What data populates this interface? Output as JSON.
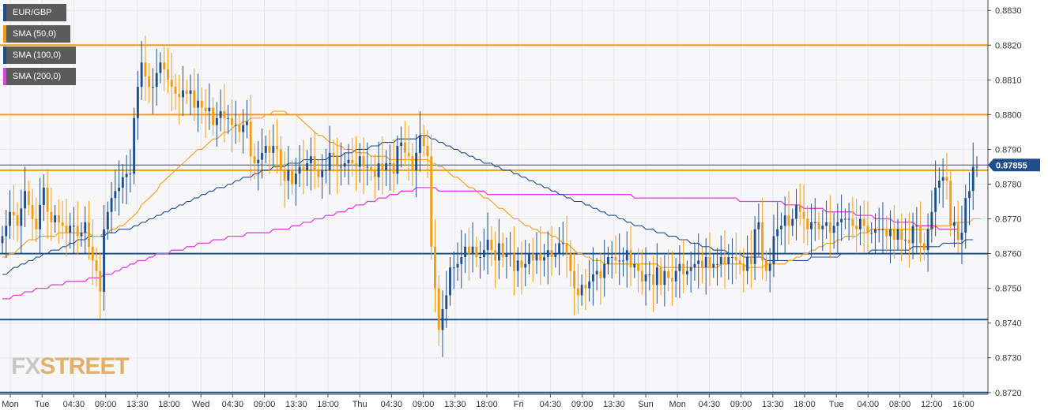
{
  "symbol": "EUR/GBP",
  "legend": [
    {
      "label": "EUR/GBP",
      "color": "#1f4e8c"
    },
    {
      "label": "SMA (50,0)",
      "color": "#f39c12"
    },
    {
      "label": "SMA (100,0)",
      "color": "#1f4e8c"
    },
    {
      "label": "SMA (200,0)",
      "color": "#e040e0"
    }
  ],
  "logo": {
    "fx": "FX",
    "street": "STREET"
  },
  "chart_data": {
    "type": "candlestick",
    "ylim": [
      0.87195,
      0.8833
    ],
    "y_ticks": [
      "0.8720",
      "0.8730",
      "0.8740",
      "0.8750",
      "0.8760",
      "0.8770",
      "0.8780",
      "0.8790",
      "0.8800",
      "0.8810",
      "0.8820",
      "0.8830"
    ],
    "x_tick_labels": [
      "Mon",
      "Tue",
      "04:30",
      "09:00",
      "13:30",
      "18:00",
      "Wed",
      "04:30",
      "09:00",
      "13:30",
      "18:00",
      "Thu",
      "04:30",
      "09:00",
      "13:30",
      "18:00",
      "Fri",
      "04:30",
      "09:00",
      "13:30",
      "Sun",
      "Mon",
      "04:30",
      "09:00",
      "13:30",
      "18:00",
      "Tue",
      "04:00",
      "08:00",
      "12:00",
      "16:00"
    ],
    "current_price": "0.87855",
    "colors": {
      "up": "#1f4e8c",
      "down": "#f39c12",
      "sma50": "#f39c12",
      "sma100": "#1f4e8c",
      "sma200": "#e040e0",
      "grid": "#e6e6e6",
      "plot_bg": "#f7f7f9"
    },
    "horizontal_levels": [
      {
        "value": 0.882,
        "color": "#f39c12"
      },
      {
        "value": 0.88,
        "color": "#f39c12"
      },
      {
        "value": 0.8784,
        "color": "#f39c12"
      },
      {
        "value": 0.87855,
        "color": "#1f4e8c"
      },
      {
        "value": 0.876,
        "color": "#1f4e8c"
      },
      {
        "value": 0.8741,
        "color": "#1f4e8c"
      },
      {
        "value": 0.872,
        "color": "#1f4e8c"
      }
    ],
    "close": [
      0.8765,
      0.8768,
      0.8772,
      0.8771,
      0.8768,
      0.8773,
      0.8778,
      0.8774,
      0.877,
      0.8767,
      0.8774,
      0.8779,
      0.8772,
      0.8769,
      0.8771,
      0.8769,
      0.8768,
      0.8766,
      0.8768,
      0.8768,
      0.8765,
      0.8766,
      0.8769,
      0.8762,
      0.8758,
      0.8755,
      0.8749,
      0.8767,
      0.8772,
      0.8776,
      0.8778,
      0.8779,
      0.8782,
      0.8783,
      0.8783,
      0.8799,
      0.8808,
      0.8815,
      0.8811,
      0.8808,
      0.8808,
      0.8812,
      0.8815,
      0.8813,
      0.881,
      0.8808,
      0.8806,
      0.8805,
      0.8807,
      0.8806,
      0.8807,
      0.8802,
      0.8804,
      0.8802,
      0.8801,
      0.8802,
      0.8797,
      0.8799,
      0.8801,
      0.8799,
      0.8799,
      0.8797,
      0.8797,
      0.8795,
      0.8797,
      0.8798,
      0.8788,
      0.8786,
      0.8787,
      0.8789,
      0.8791,
      0.8789,
      0.8791,
      0.879,
      0.8784,
      0.8781,
      0.8784,
      0.878,
      0.8783,
      0.8785,
      0.8784,
      0.8786,
      0.8788,
      0.8784,
      0.8782,
      0.8784,
      0.8784,
      0.8789,
      0.8788,
      0.8785,
      0.8785,
      0.8786,
      0.8787,
      0.8786,
      0.8785,
      0.8788,
      0.8785,
      0.8785,
      0.8784,
      0.8782,
      0.8786,
      0.8784,
      0.8786,
      0.8786,
      0.8783,
      0.8791,
      0.8792,
      0.8789,
      0.8788,
      0.8784,
      0.8789,
      0.8794,
      0.8791,
      0.8788,
      0.8762,
      0.875,
      0.8738,
      0.8744,
      0.8748,
      0.8756,
      0.8756,
      0.8757,
      0.8759,
      0.8762,
      0.876,
      0.8762,
      0.8759,
      0.8759,
      0.8761,
      0.8764,
      0.8761,
      0.8758,
      0.8763,
      0.8759,
      0.876,
      0.876,
      0.8755,
      0.8758,
      0.8756,
      0.8757,
      0.876,
      0.8758,
      0.876,
      0.8758,
      0.8759,
      0.8761,
      0.8759,
      0.876,
      0.8763,
      0.8763,
      0.876,
      0.8755,
      0.875,
      0.8748,
      0.8751,
      0.875,
      0.8752,
      0.8754,
      0.8755,
      0.8753,
      0.8757,
      0.8759,
      0.8759,
      0.8758,
      0.8758,
      0.8758,
      0.8761,
      0.8756,
      0.8757,
      0.8755,
      0.8752,
      0.8754,
      0.8754,
      0.8751,
      0.8756,
      0.8751,
      0.8755,
      0.8753,
      0.8752,
      0.8755,
      0.8757,
      0.8754,
      0.8755,
      0.8756,
      0.8757,
      0.8758,
      0.8756,
      0.8759,
      0.8756,
      0.8757,
      0.8757,
      0.8759,
      0.8757,
      0.8759,
      0.8759,
      0.8758,
      0.8757,
      0.8755,
      0.8759,
      0.8757,
      0.8767,
      0.8769,
      0.8758,
      0.8755,
      0.8757,
      0.8765,
      0.8767,
      0.8768,
      0.8771,
      0.8768,
      0.877,
      0.8774,
      0.8772,
      0.877,
      0.8767,
      0.8769,
      0.8769,
      0.8767,
      0.8768,
      0.8769,
      0.8766,
      0.8768,
      0.8769,
      0.877,
      0.877,
      0.877,
      0.8768,
      0.8767,
      0.877,
      0.8768,
      0.8766,
      0.8766,
      0.8767,
      0.8767,
      0.8767,
      0.8765,
      0.8767,
      0.8764,
      0.8767,
      0.8764,
      0.8764,
      0.8763,
      0.8768,
      0.8768,
      0.8763,
      0.8761,
      0.8767,
      0.8772,
      0.8779,
      0.8781,
      0.8782,
      0.8781,
      0.8768,
      0.8769,
      0.8764,
      0.8766,
      0.8776,
      0.8778,
      0.8785,
      0.8785
    ],
    "sma50": [
      0.8759,
      0.8759,
      0.876,
      0.876,
      0.8761,
      0.8762,
      0.8763,
      0.8764,
      0.8764,
      0.8764,
      0.8765,
      0.8765,
      0.8765,
      0.8765,
      0.8765,
      0.8766,
      0.8766,
      0.8766,
      0.8766,
      0.8766,
      0.8766,
      0.8766,
      0.8766,
      0.8766,
      0.8765,
      0.8765,
      0.8765,
      0.8766,
      0.8766,
      0.8767,
      0.8767,
      0.8768,
      0.8768,
      0.8769,
      0.877,
      0.8771,
      0.8772,
      0.8774,
      0.8775,
      0.8776,
      0.8777,
      0.8778,
      0.878,
      0.8781,
      0.8782,
      0.8783,
      0.8784,
      0.8785,
      0.8786,
      0.8787,
      0.8788,
      0.8789,
      0.879,
      0.879,
      0.8791,
      0.8792,
      0.8793,
      0.8793,
      0.8794,
      0.8795,
      0.8795,
      0.8796,
      0.8797,
      0.8797,
      0.8798,
      0.8798,
      0.8799,
      0.8799,
      0.8799,
      0.8799,
      0.88,
      0.88,
      0.8801,
      0.8801,
      0.8801,
      0.8801,
      0.88,
      0.88,
      0.88,
      0.8799,
      0.8798,
      0.8797,
      0.8796,
      0.8795,
      0.8794,
      0.8794,
      0.8793,
      0.8792,
      0.8792,
      0.8791,
      0.8791,
      0.879,
      0.879,
      0.879,
      0.8789,
      0.8789,
      0.8789,
      0.8789,
      0.8788,
      0.8788,
      0.8788,
      0.8788,
      0.8788,
      0.8787,
      0.8787,
      0.8787,
      0.8787,
      0.8787,
      0.8787,
      0.8787,
      0.8787,
      0.8787,
      0.8787,
      0.8787,
      0.8786,
      0.8786,
      0.8785,
      0.8785,
      0.8784,
      0.8783,
      0.8782,
      0.8782,
      0.8781,
      0.878,
      0.8779,
      0.8779,
      0.8778,
      0.8777,
      0.8776,
      0.8776,
      0.8775,
      0.8774,
      0.8773,
      0.8773,
      0.8772,
      0.8771,
      0.877,
      0.877,
      0.8769,
      0.8768,
      0.8768,
      0.8767,
      0.8767,
      0.8766,
      0.8766,
      0.8766,
      0.8765,
      0.8765,
      0.8764,
      0.8763,
      0.8763,
      0.8762,
      0.8761,
      0.876,
      0.876,
      0.8759,
      0.8759,
      0.8758,
      0.8758,
      0.8758,
      0.8757,
      0.8757,
      0.8757,
      0.8757,
      0.8757,
      0.8757,
      0.8757,
      0.8757,
      0.8757,
      0.8757,
      0.8757,
      0.8757,
      0.8757,
      0.8757,
      0.8757,
      0.8756,
      0.8756,
      0.8756,
      0.8756,
      0.8756,
      0.8756,
      0.8756,
      0.8756,
      0.8756,
      0.8756,
      0.8756,
      0.8756,
      0.8756,
      0.8756,
      0.8756,
      0.8756,
      0.8757,
      0.8757,
      0.8757,
      0.8757,
      0.8757,
      0.8757,
      0.8757,
      0.8756,
      0.8756,
      0.8756,
      0.8756,
      0.8756,
      0.8757,
      0.8757,
      0.8757,
      0.8757,
      0.8757,
      0.8757,
      0.8758,
      0.8758,
      0.8759,
      0.8759,
      0.876,
      0.876,
      0.8761,
      0.8761,
      0.8762,
      0.8762,
      0.8763,
      0.8763,
      0.8763,
      0.8764,
      0.8764,
      0.8765,
      0.8765,
      0.8765,
      0.8765,
      0.8766,
      0.8766,
      0.8766,
      0.8767,
      0.8767,
      0.8767,
      0.8767,
      0.8767,
      0.8767,
      0.8767,
      0.8767,
      0.8767,
      0.8767,
      0.8767,
      0.8767,
      0.8767,
      0.8767,
      0.8767,
      0.8767,
      0.8767,
      0.8768,
      0.8768,
      0.8768,
      0.8768,
      0.8768,
      0.8769,
      0.8769,
      0.8769,
      0.8769,
      0.8769,
      0.877,
      0.877,
      0.877
    ],
    "sma100": [
      0.8754,
      0.8754,
      0.8755,
      0.8756,
      0.8756,
      0.8757,
      0.8757,
      0.8758,
      0.8758,
      0.8759,
      0.8759,
      0.876,
      0.876,
      0.8761,
      0.8761,
      0.8761,
      0.8762,
      0.8762,
      0.8763,
      0.8763,
      0.8764,
      0.8764,
      0.8764,
      0.8765,
      0.8765,
      0.8765,
      0.8765,
      0.8765,
      0.8766,
      0.8766,
      0.8766,
      0.8767,
      0.8767,
      0.8767,
      0.8767,
      0.8768,
      0.8768,
      0.8769,
      0.8769,
      0.877,
      0.877,
      0.8771,
      0.8771,
      0.8772,
      0.8772,
      0.8773,
      0.8773,
      0.8774,
      0.8774,
      0.8775,
      0.8775,
      0.8776,
      0.8776,
      0.8777,
      0.8777,
      0.8778,
      0.8778,
      0.8779,
      0.8779,
      0.8779,
      0.878,
      0.878,
      0.8781,
      0.8781,
      0.8782,
      0.8782,
      0.8782,
      0.8783,
      0.8783,
      0.8784,
      0.8784,
      0.8784,
      0.8785,
      0.8785,
      0.8785,
      0.8785,
      0.8786,
      0.8786,
      0.8786,
      0.8786,
      0.8787,
      0.8787,
      0.8787,
      0.8787,
      0.8787,
      0.8787,
      0.8787,
      0.8788,
      0.8788,
      0.8788,
      0.8788,
      0.8789,
      0.8789,
      0.8789,
      0.879,
      0.879,
      0.879,
      0.879,
      0.8791,
      0.8791,
      0.8791,
      0.8792,
      0.8792,
      0.8792,
      0.8792,
      0.8793,
      0.8793,
      0.8793,
      0.8793,
      0.8793,
      0.8793,
      0.8794,
      0.8794,
      0.8794,
      0.8793,
      0.8793,
      0.8792,
      0.8792,
      0.8791,
      0.8791,
      0.879,
      0.879,
      0.8789,
      0.8789,
      0.8788,
      0.8788,
      0.8787,
      0.8787,
      0.8786,
      0.8786,
      0.8786,
      0.8785,
      0.8785,
      0.8784,
      0.8784,
      0.8784,
      0.8783,
      0.8783,
      0.8782,
      0.8782,
      0.8781,
      0.8781,
      0.878,
      0.878,
      0.8779,
      0.8779,
      0.8778,
      0.8778,
      0.8777,
      0.8777,
      0.8776,
      0.8776,
      0.8775,
      0.8775,
      0.8775,
      0.8774,
      0.8774,
      0.8773,
      0.8773,
      0.8772,
      0.8772,
      0.8771,
      0.8771,
      0.8771,
      0.877,
      0.877,
      0.8769,
      0.8769,
      0.8768,
      0.8768,
      0.8768,
      0.8767,
      0.8767,
      0.8767,
      0.8766,
      0.8766,
      0.8766,
      0.8765,
      0.8765,
      0.8765,
      0.8764,
      0.8764,
      0.8764,
      0.8763,
      0.8763,
      0.8763,
      0.8762,
      0.8762,
      0.8762,
      0.8761,
      0.8761,
      0.8761,
      0.8761,
      0.876,
      0.876,
      0.876,
      0.876,
      0.8759,
      0.8759,
      0.8759,
      0.8759,
      0.8759,
      0.8759,
      0.8758,
      0.8758,
      0.8758,
      0.8758,
      0.8758,
      0.8758,
      0.8758,
      0.8758,
      0.8758,
      0.8758,
      0.8758,
      0.8758,
      0.8759,
      0.8759,
      0.8759,
      0.8759,
      0.8759,
      0.8759,
      0.8759,
      0.8759,
      0.876,
      0.876,
      0.876,
      0.876,
      0.876,
      0.876,
      0.876,
      0.876,
      0.8761,
      0.8761,
      0.8761,
      0.8761,
      0.8761,
      0.8761,
      0.8761,
      0.8761,
      0.8761,
      0.8761,
      0.8761,
      0.8762,
      0.8762,
      0.8762,
      0.8762,
      0.8762,
      0.8762,
      0.8762,
      0.8762,
      0.8763,
      0.8763,
      0.8763,
      0.8763,
      0.8763,
      0.8763,
      0.8764,
      0.8764,
      0.8764
    ],
    "sma200": [
      0.8747,
      0.8747,
      0.8747,
      0.8748,
      0.8748,
      0.8748,
      0.8749,
      0.8749,
      0.8749,
      0.875,
      0.875,
      0.875,
      0.875,
      0.8751,
      0.8751,
      0.8751,
      0.8751,
      0.8752,
      0.8752,
      0.8752,
      0.8752,
      0.8752,
      0.8752,
      0.8753,
      0.8753,
      0.8753,
      0.8753,
      0.8754,
      0.8754,
      0.8754,
      0.8755,
      0.8755,
      0.8756,
      0.8756,
      0.8757,
      0.8757,
      0.8758,
      0.8758,
      0.8758,
      0.8759,
      0.8759,
      0.876,
      0.876,
      0.876,
      0.876,
      0.8761,
      0.8761,
      0.8761,
      0.8761,
      0.8762,
      0.8762,
      0.8762,
      0.8763,
      0.8763,
      0.8763,
      0.8763,
      0.8764,
      0.8764,
      0.8764,
      0.8764,
      0.8765,
      0.8765,
      0.8765,
      0.8765,
      0.8765,
      0.8766,
      0.8766,
      0.8766,
      0.8766,
      0.8766,
      0.8766,
      0.8766,
      0.8767,
      0.8767,
      0.8767,
      0.8767,
      0.8767,
      0.8768,
      0.8768,
      0.8768,
      0.8769,
      0.8769,
      0.8769,
      0.877,
      0.877,
      0.877,
      0.8771,
      0.8771,
      0.8771,
      0.8772,
      0.8772,
      0.8772,
      0.8773,
      0.8773,
      0.8774,
      0.8774,
      0.8774,
      0.8775,
      0.8775,
      0.8775,
      0.8776,
      0.8776,
      0.8776,
      0.8777,
      0.8777,
      0.8777,
      0.8778,
      0.8778,
      0.8778,
      0.8778,
      0.8779,
      0.8779,
      0.8779,
      0.8779,
      0.8779,
      0.8779,
      0.8778,
      0.8778,
      0.8778,
      0.8778,
      0.8778,
      0.8778,
      0.8778,
      0.8778,
      0.8778,
      0.8778,
      0.8778,
      0.8778,
      0.8778,
      0.8777,
      0.8777,
      0.8777,
      0.8777,
      0.8777,
      0.8777,
      0.8777,
      0.8777,
      0.8777,
      0.8777,
      0.8777,
      0.8777,
      0.8777,
      0.8777,
      0.8777,
      0.8777,
      0.8777,
      0.8777,
      0.8777,
      0.8777,
      0.8777,
      0.8777,
      0.8777,
      0.8777,
      0.8777,
      0.8777,
      0.8777,
      0.8777,
      0.8777,
      0.8777,
      0.8777,
      0.8777,
      0.8777,
      0.8777,
      0.8777,
      0.8777,
      0.8777,
      0.8777,
      0.8777,
      0.8776,
      0.8776,
      0.8776,
      0.8776,
      0.8776,
      0.8776,
      0.8776,
      0.8776,
      0.8776,
      0.8776,
      0.8776,
      0.8776,
      0.8776,
      0.8776,
      0.8776,
      0.8776,
      0.8776,
      0.8776,
      0.8776,
      0.8776,
      0.8776,
      0.8776,
      0.8776,
      0.8776,
      0.8776,
      0.8776,
      0.8776,
      0.8776,
      0.8775,
      0.8775,
      0.8775,
      0.8775,
      0.8775,
      0.8775,
      0.8775,
      0.8775,
      0.8775,
      0.8775,
      0.8775,
      0.8775,
      0.8774,
      0.8774,
      0.8774,
      0.8774,
      0.8774,
      0.8773,
      0.8773,
      0.8773,
      0.8773,
      0.8773,
      0.8773,
      0.8772,
      0.8772,
      0.8772,
      0.8772,
      0.8772,
      0.8772,
      0.8772,
      0.8772,
      0.8771,
      0.8771,
      0.8771,
      0.8771,
      0.8771,
      0.877,
      0.877,
      0.877,
      0.877,
      0.877,
      0.8769,
      0.8769,
      0.8769,
      0.8769,
      0.8769,
      0.8769,
      0.8768,
      0.8768,
      0.8768,
      0.8768,
      0.8768,
      0.8768,
      0.8767,
      0.8767,
      0.8767,
      0.8767,
      0.8767,
      0.8767
    ]
  }
}
